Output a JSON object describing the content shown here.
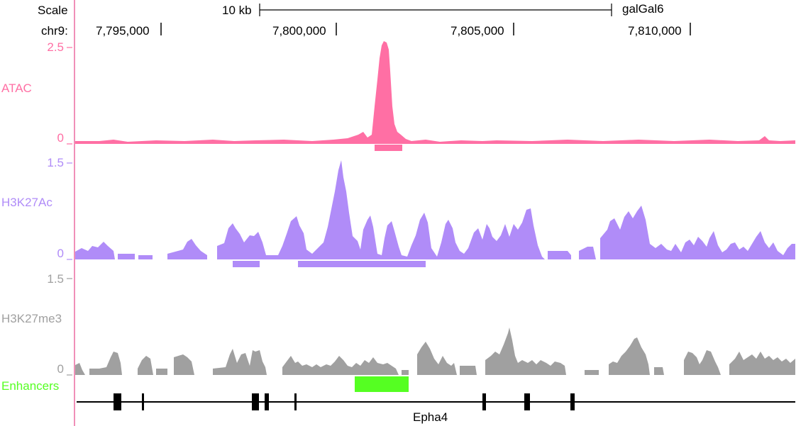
{
  "header": {
    "scale_label": "Scale",
    "scale_bar_label": "10 kb",
    "genome": "galGal6",
    "chrom_label": "chr9:",
    "positions": [
      "7,795,000",
      "7,800,000",
      "7,805,000",
      "7,810,000"
    ]
  },
  "tracks": {
    "atac": {
      "label": "ATAC",
      "max": "2.5",
      "min": "0",
      "color": "#ff6fa4"
    },
    "h3k27ac": {
      "label": "H3K27Ac",
      "max": "1.5",
      "min": "0",
      "color": "#b08cf8"
    },
    "h3k27me3": {
      "label": "H3K27me3",
      "max": "1.5",
      "min": "0",
      "color": "#a0a0a0"
    },
    "enhancers": {
      "label": "Enhancers",
      "color": "#55ff22"
    }
  },
  "gene": {
    "name": "Epha4"
  },
  "colors": {
    "divider": "#f090b8",
    "gene": "#000000"
  }
}
